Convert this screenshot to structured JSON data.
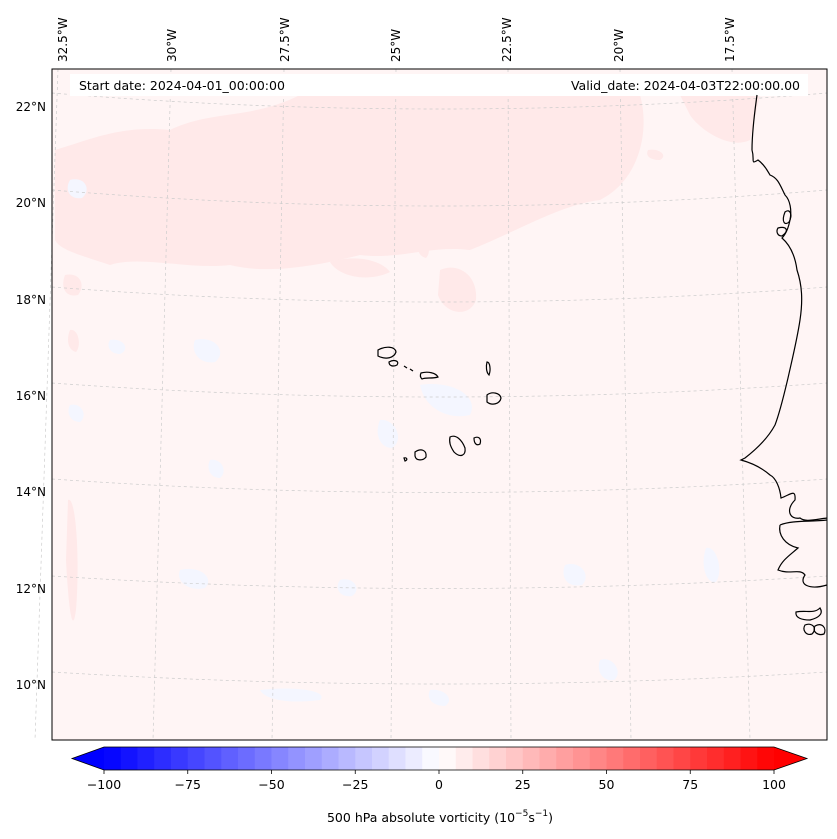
{
  "header": {
    "start_date": "Start date: 2024-04-01_00:00:00",
    "valid_date": "Valid_date: 2024-04-03T22:00:00.00"
  },
  "map": {
    "lon_labels": [
      "32.5°W",
      "30°W",
      "27.5°W",
      "25°W",
      "22.5°W",
      "20°W",
      "17.5°W"
    ],
    "lat_labels": [
      "22°N",
      "20°N",
      "18°N",
      "16°N",
      "14°N",
      "12°N",
      "10°N"
    ],
    "field_color": "#fff5f5",
    "positive_patch_color": "#ffe9e9",
    "negative_patch_color": "#f4f6ff",
    "coastline_color": "#000000",
    "gridline_color": "#cccccc"
  },
  "colorbar": {
    "label_text": "500 hPa absolute vorticity (10",
    "label_exp1": "−5",
    "label_mid": "s",
    "label_exp2": "−1",
    "label_end": ")",
    "ticks": [
      "−100",
      "−75",
      "−50",
      "−25",
      "0",
      "25",
      "50",
      "75",
      "100"
    ],
    "tick_values": [
      -100,
      -75,
      -50,
      -25,
      0,
      25,
      50,
      75,
      100
    ],
    "min": -100,
    "max": 100,
    "min_color": "#0000ff",
    "zero_color": "#ffffff",
    "max_color": "#ff0000"
  }
}
